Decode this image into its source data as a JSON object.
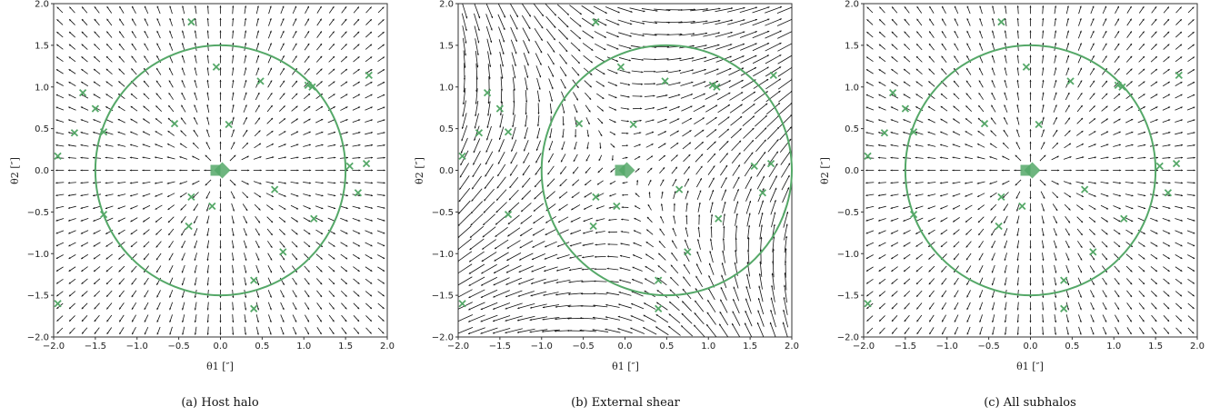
{
  "chart_data": [
    {
      "type": "quiver",
      "panel": "a",
      "field": "radial",
      "caption": "(a) Host halo",
      "xlabel": "θ1 [″]",
      "ylabel": "θ2 [″]",
      "xlim": [
        -2.0,
        2.0
      ],
      "ylim": [
        -2.0,
        2.0
      ],
      "xticks": [
        "−2.0",
        "−1.5",
        "−1.0",
        "−0.5",
        "0.0",
        "0.5",
        "1.0",
        "1.5",
        "2.0"
      ],
      "yticks": [
        "−2.0",
        "−1.5",
        "−1.0",
        "−0.5",
        "0.0",
        "0.5",
        "1.0",
        "1.5",
        "2.0"
      ],
      "circle": {
        "center": [
          0.0,
          0.0
        ],
        "radius": 1.5,
        "color": "#55a868"
      }
    },
    {
      "type": "quiver",
      "panel": "b",
      "field": "shear",
      "caption": "(b) External shear",
      "xlabel": "θ1 [″]",
      "ylabel": "θ2 [″]",
      "xlim": [
        -2.0,
        2.0
      ],
      "ylim": [
        -2.0,
        2.0
      ],
      "xticks": [
        "−2.0",
        "−1.5",
        "−1.0",
        "−0.5",
        "0.0",
        "0.5",
        "1.0",
        "1.5",
        "2.0"
      ],
      "yticks": [
        "−2.0",
        "−1.5",
        "−1.0",
        "−0.5",
        "0.0",
        "0.5",
        "1.0",
        "1.5",
        "2.0"
      ],
      "circle": {
        "center": [
          0.5,
          0.0
        ],
        "radius": 1.5,
        "color": "#55a868"
      }
    },
    {
      "type": "quiver",
      "panel": "c",
      "field": "subhalos",
      "caption": "(c) All subhalos",
      "xlabel": "θ1 [″]",
      "ylabel": "θ2 [″]",
      "xlim": [
        -2.0,
        2.0
      ],
      "ylim": [
        -2.0,
        2.0
      ],
      "xticks": [
        "−2.0",
        "−1.5",
        "−1.0",
        "−0.5",
        "0.0",
        "0.5",
        "1.0",
        "1.5",
        "2.0"
      ],
      "yticks": [
        "−2.0",
        "−1.5",
        "−1.0",
        "−0.5",
        "0.0",
        "0.5",
        "1.0",
        "1.5",
        "2.0"
      ],
      "circle": {
        "center": [
          0.0,
          0.0
        ],
        "radius": 1.5,
        "color": "#55a868"
      }
    }
  ],
  "subhalo_positions": [
    [
      -0.35,
      1.78
    ],
    [
      -0.05,
      1.24
    ],
    [
      -1.65,
      0.93
    ],
    [
      -1.5,
      0.74
    ],
    [
      0.48,
      1.07
    ],
    [
      1.05,
      1.02
    ],
    [
      1.1,
      1.0
    ],
    [
      1.78,
      1.14
    ],
    [
      -1.75,
      0.45
    ],
    [
      -1.4,
      0.46
    ],
    [
      -0.55,
      0.56
    ],
    [
      0.1,
      0.55
    ],
    [
      -1.95,
      0.17
    ],
    [
      1.55,
      0.05
    ],
    [
      1.75,
      0.08
    ],
    [
      -0.35,
      -0.32
    ],
    [
      0.65,
      -0.23
    ],
    [
      1.65,
      -0.27
    ],
    [
      -0.1,
      -0.43
    ],
    [
      -1.4,
      -0.53
    ],
    [
      1.12,
      -0.58
    ],
    [
      -0.38,
      -0.67
    ],
    [
      0.75,
      -0.98
    ],
    [
      0.4,
      -1.32
    ],
    [
      0.4,
      -1.66
    ],
    [
      -1.95,
      -1.6
    ]
  ],
  "host_center": [
    0.0,
    0.0
  ],
  "marker_color": "#55a868"
}
